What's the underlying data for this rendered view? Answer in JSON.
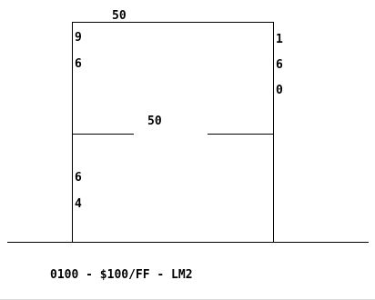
{
  "diagram": {
    "top_width_label": "50",
    "middle_width_label": "50",
    "left_upper_depth_digits": [
      "9",
      "6"
    ],
    "right_depth_digits": [
      "1",
      "6",
      "0"
    ],
    "left_lower_depth_digits": [
      "6",
      "4"
    ],
    "caption": "0100 - $100/FF - LM2"
  }
}
